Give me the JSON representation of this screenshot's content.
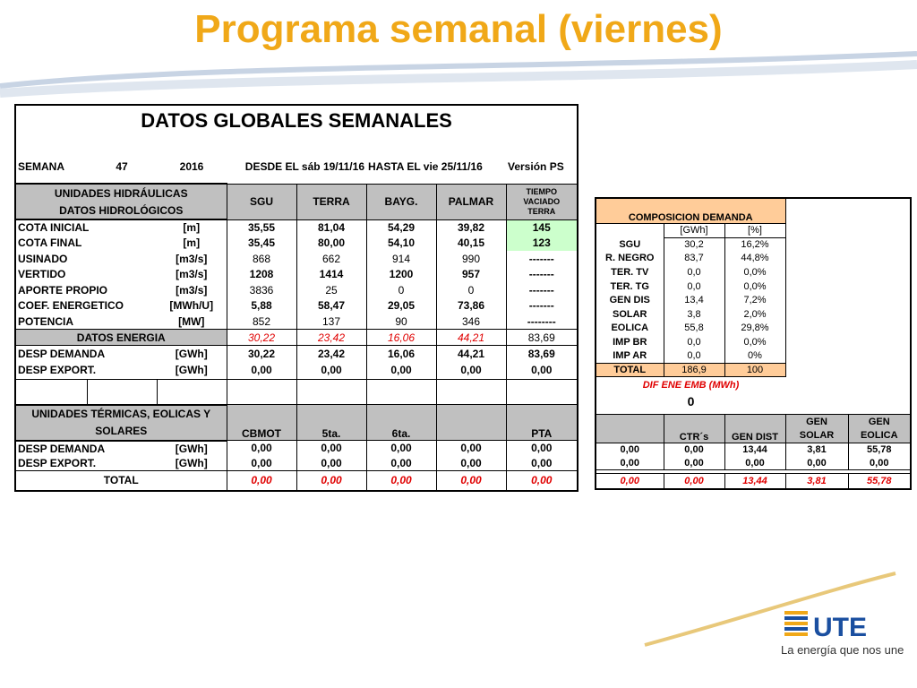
{
  "slide_title": "Programa semanal (viernes)",
  "colors": {
    "title": "#f0a818",
    "header_gray": "#c0c0c0",
    "green": "#ccffcc",
    "peach": "#ffcc99",
    "red": "#e00000",
    "logo_blue": "#1a4fa0"
  },
  "main": {
    "title": "DATOS GLOBALES SEMANALES",
    "semana_label": "SEMANA",
    "semana_num": "47",
    "year": "2016",
    "desde": "DESDE EL sáb 19/11/16",
    "hasta": "HASTA EL  vie 25/11/16",
    "version": "Versión   PS",
    "hid_header_1": "UNIDADES HIDRÁULICAS",
    "hid_header_2": "DATOS HIDROLÓGICOS",
    "cols": [
      "SGU",
      "TERRA",
      "BAYG.",
      "PALMAR"
    ],
    "tiempo_1": "TIEMPO",
    "tiempo_2": "VACIADO",
    "tiempo_3": "TERRA",
    "rows": [
      {
        "label": "COTA INICIAL",
        "unit": "[m]",
        "v": [
          "35,55",
          "81,04",
          "54,29",
          "39,82"
        ],
        "last": "145"
      },
      {
        "label": "COTA FINAL",
        "unit": "[m]",
        "v": [
          "35,45",
          "80,00",
          "54,10",
          "40,15"
        ],
        "last": "123"
      },
      {
        "label": "USINADO",
        "unit": "[m3/s]",
        "v": [
          "868",
          "662",
          "914",
          "990"
        ],
        "last": "-------"
      },
      {
        "label": "VERTIDO",
        "unit": "[m3/s]",
        "v": [
          "1208",
          "1414",
          "1200",
          "957"
        ],
        "last": "-------"
      },
      {
        "label": "APORTE PROPIO",
        "unit": "[m3/s]",
        "v": [
          "3836",
          "25",
          "0",
          "0"
        ],
        "last": "-------"
      },
      {
        "label": "COEF. ENERGETICO",
        "unit": "[MWh/U]",
        "v": [
          "5,88",
          "58,47",
          "29,05",
          "73,86"
        ],
        "last": "-------"
      },
      {
        "label": "POTENCIA",
        "unit": "[MW]",
        "v": [
          "852",
          "137",
          "90",
          "346"
        ],
        "last": "--------"
      }
    ],
    "datos_energia": {
      "label": "DATOS ENERGIA",
      "v": [
        "30,22",
        "23,42",
        "16,06",
        "44,21"
      ],
      "last": "83,69"
    },
    "desp_demanda": {
      "label": "DESP DEMANDA",
      "unit": "[GWh]",
      "v": [
        "30,22",
        "23,42",
        "16,06",
        "44,21"
      ],
      "last": "83,69"
    },
    "desp_export": {
      "label": "DESP EXPORT.",
      "unit": "[GWh]",
      "v": [
        "0,00",
        "0,00",
        "0,00",
        "0,00"
      ],
      "last": "0,00"
    },
    "ter_header_1": "UNIDADES TÉRMICAS, EOLICAS Y",
    "ter_header_2": "SOLARES",
    "ter_cols": [
      "CBMOT",
      "5ta.",
      "6ta.",
      "",
      "PTA"
    ],
    "ter_demanda": {
      "label": "DESP DEMANDA",
      "unit": "[GWh]",
      "v": [
        "0,00",
        "0,00",
        "0,00",
        "0,00",
        "0,00"
      ]
    },
    "ter_export": {
      "label": "DESP EXPORT.",
      "unit": "[GWh]",
      "v": [
        "0,00",
        "0,00",
        "0,00",
        "0,00",
        "0,00"
      ]
    },
    "total": {
      "label": "TOTAL",
      "v": [
        "0,00",
        "0,00",
        "0,00",
        "0,00",
        "0,00"
      ]
    }
  },
  "composicion": {
    "title": "COMPOSICION DEMANDA",
    "unit_gwh": "[GWh]",
    "unit_pct": "[%]",
    "rows": [
      {
        "label": "SGU",
        "gwh": "30,2",
        "pct": "16,2%"
      },
      {
        "label": "R. NEGRO",
        "gwh": "83,7",
        "pct": "44,8%"
      },
      {
        "label": "TER. TV",
        "gwh": "0,0",
        "pct": "0,0%"
      },
      {
        "label": "TER. TG",
        "gwh": "0,0",
        "pct": "0,0%"
      },
      {
        "label": "GEN DIS",
        "gwh": "13,4",
        "pct": "7,2%"
      },
      {
        "label": "SOLAR",
        "gwh": "3,8",
        "pct": "2,0%"
      },
      {
        "label": "EOLICA",
        "gwh": "55,8",
        "pct": "29,8%"
      },
      {
        "label": "IMP BR",
        "gwh": "0,0",
        "pct": "0,0%"
      },
      {
        "label": "IMP AR",
        "gwh": "0,0",
        "pct": "0%"
      }
    ],
    "total": {
      "label": "TOTAL",
      "gwh": "186,9",
      "pct": "100"
    },
    "dif_label": "DIF ENE EMB (MWh)",
    "dif_value": "0",
    "gen_headers": [
      "",
      "CTR´s",
      "GEN DIST",
      "GEN SOLAR",
      "GEN EOLICA"
    ],
    "gen_header_top": [
      "",
      "",
      "",
      "GEN",
      "GEN"
    ],
    "gen_header_bottom": [
      "",
      "CTR´s",
      "GEN DIST",
      "SOLAR",
      "EOLICA"
    ],
    "gen_row1": [
      "0,00",
      "0,00",
      "13,44",
      "3,81",
      "55,78"
    ],
    "gen_row2": [
      "0,00",
      "0,00",
      "0,00",
      "0,00",
      "0,00"
    ],
    "gen_total": [
      "0,00",
      "0,00",
      "13,44",
      "3,81",
      "55,78"
    ]
  },
  "logo": {
    "text": "UTE",
    "tagline": "La energía que nos une"
  }
}
